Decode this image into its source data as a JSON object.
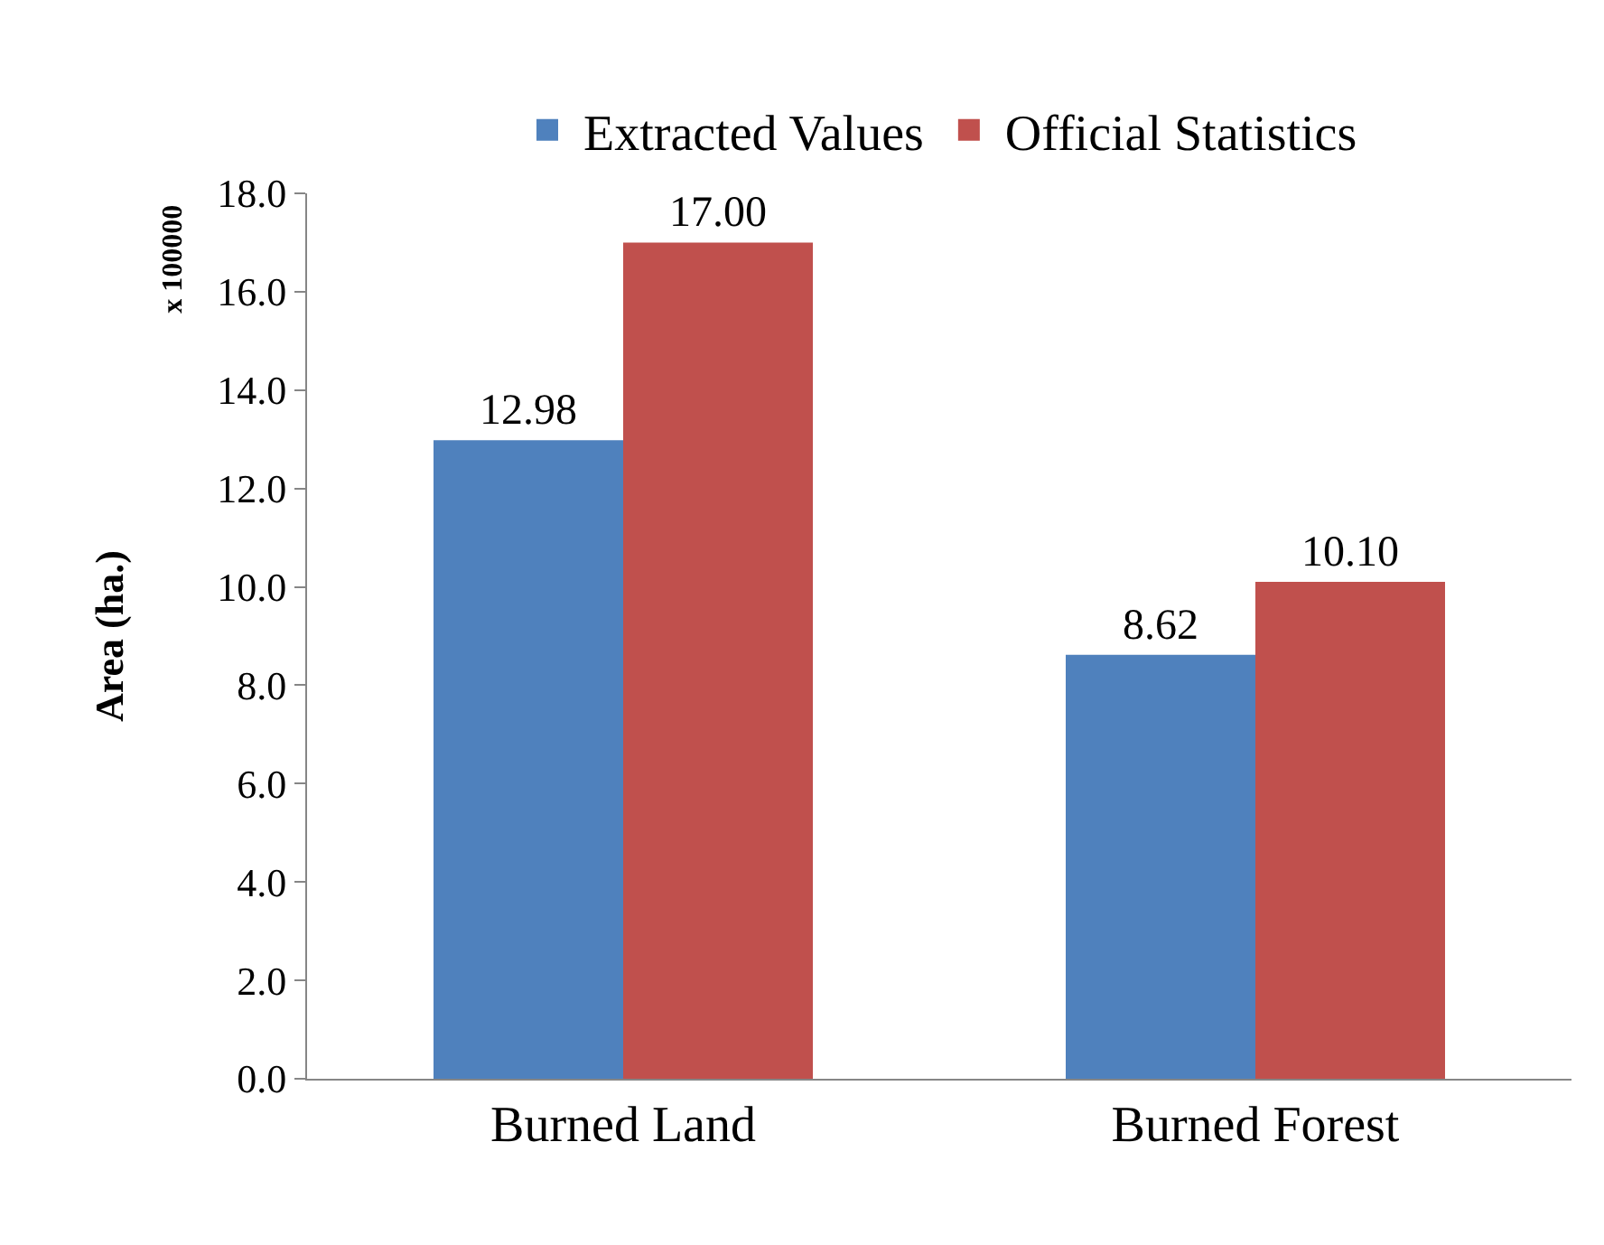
{
  "chart_data": {
    "type": "bar",
    "ylabel": "Area (ha.)",
    "annotations": [
      "x 100000"
    ],
    "categories": [
      "Burned Land",
      "Burned Forest"
    ],
    "series": [
      {
        "name": "Extracted Values",
        "color": "#4f81bd",
        "values": [
          12.98,
          8.62
        ],
        "value_labels": [
          "12.98",
          "8.62"
        ]
      },
      {
        "name": "Official Statistics",
        "color": "#c0504d",
        "values": [
          17.0,
          10.1
        ],
        "value_labels": [
          "17.00",
          "10.10"
        ]
      }
    ],
    "ylim": [
      0,
      18
    ],
    "yticks": [
      {
        "value": 0,
        "label": "0.0"
      },
      {
        "value": 2,
        "label": "2.0"
      },
      {
        "value": 4,
        "label": "4.0"
      },
      {
        "value": 6,
        "label": "6.0"
      },
      {
        "value": 8,
        "label": "8.0"
      },
      {
        "value": 10,
        "label": "10.0"
      },
      {
        "value": 12,
        "label": "12.0"
      },
      {
        "value": 14,
        "label": "14.0"
      },
      {
        "value": 16,
        "label": "16.0"
      },
      {
        "value": 18,
        "label": "18.0"
      }
    ],
    "legend": "top"
  }
}
